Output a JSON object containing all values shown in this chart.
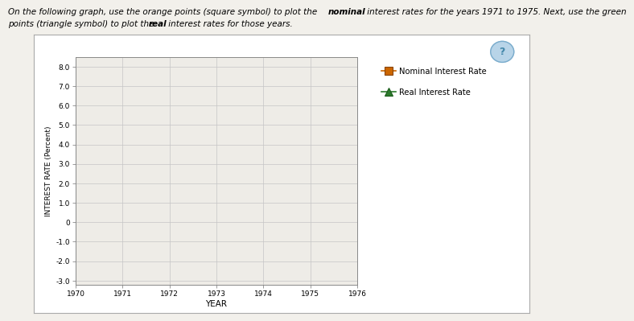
{
  "nominal_color": "#cc6600",
  "real_color": "#2d7a2d",
  "xlabel": "YEAR",
  "ylabel": "INTEREST RATE (Percent)",
  "xlim": [
    1970,
    1976
  ],
  "ylim": [
    -3.0,
    8.5
  ],
  "yticks": [
    -3.0,
    -2.0,
    -1.0,
    0.0,
    1.0,
    2.0,
    3.0,
    4.0,
    5.0,
    6.0,
    7.0,
    8.0
  ],
  "ytick_labels": [
    "-3.0",
    "-2.0",
    "-1.0",
    "0",
    "1.0",
    "2.0",
    "3.0",
    "4.0",
    "5.0",
    "6.0",
    "7.0",
    "8.0"
  ],
  "xticks": [
    1970,
    1971,
    1972,
    1973,
    1974,
    1975,
    1976
  ],
  "legend_nominal": "Nominal Interest Rate",
  "legend_real": "Real Interest Rate",
  "plot_bg": "#f0eeea",
  "outer_bg": "#f0eeea",
  "box_bg": "#e8e6e0",
  "grid_color": "#c5c5c5",
  "marker_size": 7,
  "line_width": 1.0,
  "header1": "On the following graph, use the orange points (square symbol) to plot the ",
  "header1_bold": "nominal",
  "header1_end": " interest rates for the years 1971 to 1975. Next, use the green",
  "header2": "points (triangle symbol) to plot the ",
  "header2_bold": "real",
  "header2_end": " interest rates for those years."
}
